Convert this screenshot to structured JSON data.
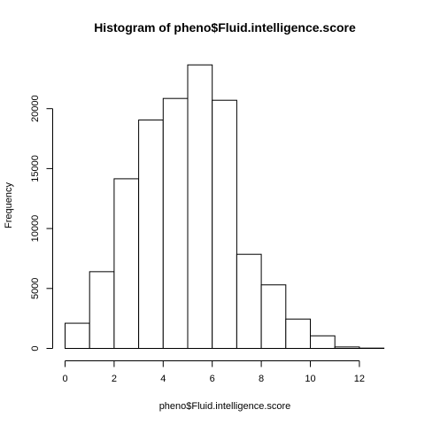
{
  "chart_data": {
    "type": "bar",
    "title": "Histogram of pheno$Fluid.intelligence.score",
    "xlabel": "pheno$Fluid.intelligence.score",
    "ylabel": "Frequency",
    "bins": [
      {
        "from": 0,
        "to": 1,
        "count": 2100
      },
      {
        "from": 1,
        "to": 2,
        "count": 6400
      },
      {
        "from": 2,
        "to": 3,
        "count": 14150
      },
      {
        "from": 3,
        "to": 4,
        "count": 19050
      },
      {
        "from": 4,
        "to": 5,
        "count": 20850
      },
      {
        "from": 5,
        "to": 6,
        "count": 23650
      },
      {
        "from": 6,
        "to": 7,
        "count": 20700
      },
      {
        "from": 7,
        "to": 8,
        "count": 7850
      },
      {
        "from": 8,
        "to": 9,
        "count": 5300
      },
      {
        "from": 9,
        "to": 10,
        "count": 2450
      },
      {
        "from": 10,
        "to": 11,
        "count": 1050
      },
      {
        "from": 11,
        "to": 12,
        "count": 120
      },
      {
        "from": 12,
        "to": 13,
        "count": 25
      }
    ],
    "xlim": [
      0,
      13
    ],
    "ylim": [
      0,
      23650
    ],
    "x_ticks": [
      "0",
      "2",
      "4",
      "6",
      "8",
      "10",
      "12"
    ],
    "y_ticks": [
      "0",
      "5000",
      "10000",
      "15000",
      "20000"
    ],
    "grid": false,
    "legend": "none"
  }
}
